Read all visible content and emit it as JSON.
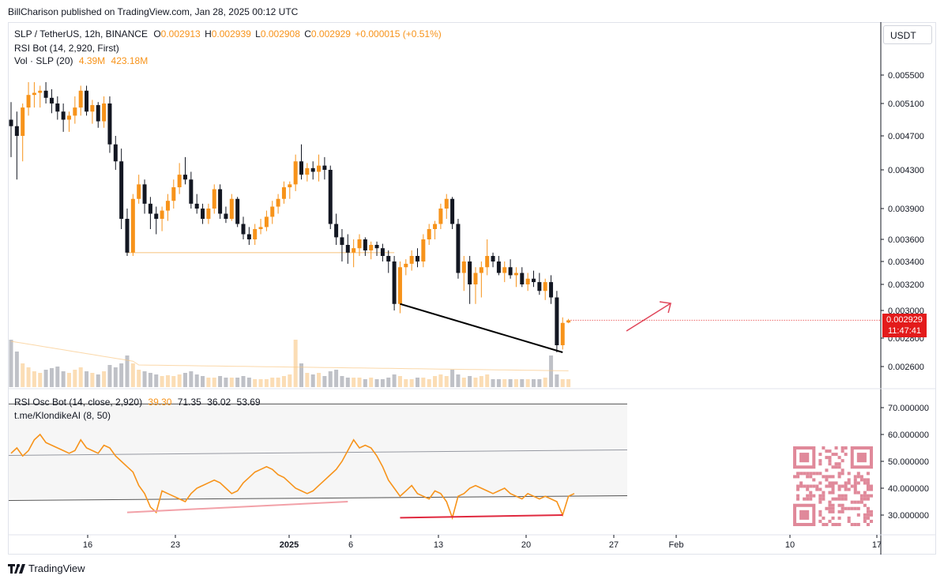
{
  "header": {
    "published_line": "BillCharison published on TradingView.com, Jan 28, 2025 00:12 UTC"
  },
  "legend": {
    "symbol": "SLP / TetherUS, 12h, BINANCE",
    "open_label": "O",
    "open": "0.002913",
    "high_label": "H",
    "high": "0.002939",
    "low_label": "L",
    "low": "0.002908",
    "close_label": "C",
    "close": "0.002929",
    "change": "+0.000015 (+0.51%)",
    "indicator1": "RSI Bot (14, 2,920, First)",
    "vol_label": "Vol · SLP (20)",
    "vol_value": "4.39M",
    "vol_ma": "423.18M",
    "rsi_label": "RSI Osc Bot (14, close, 2,920)",
    "rsi_values": [
      "39.30",
      "71.35",
      "36.02",
      "53.69"
    ],
    "klondike": "t.me/KlondikeAI (8, 50)"
  },
  "currency_button": "USDT",
  "price_tag": {
    "price": "0.002929",
    "countdown": "11:47:41"
  },
  "colors": {
    "up": "#f7931a",
    "down": "#131722",
    "rsi_line": "#f7931a",
    "divergence_faded": "#f2a1a8",
    "divergence_strong": "#e0293f",
    "arrow": "#e0465a",
    "price_tag_bg": "#e31b1b",
    "grid": "#e0e3eb"
  },
  "footer": {
    "brand": "TradingView"
  },
  "chart_data": [
    {
      "type": "candlestick",
      "title": "SLP / TetherUS, 12h, BINANCE",
      "y_axis_ticks": [
        "0.005500",
        "0.005100",
        "0.004700",
        "0.004300",
        "0.003900",
        "0.003600",
        "0.003400",
        "0.003200",
        "0.003000",
        "0.002800",
        "0.002600"
      ],
      "x_axis_ticks": [
        "16",
        "23",
        "2025",
        "6",
        "13",
        "20",
        "27",
        "Feb",
        "10",
        "17"
      ],
      "ohlc": [
        [
          0.0049,
          0.00512,
          0.00445,
          0.00482
        ],
        [
          0.00482,
          0.005,
          0.0042,
          0.0047
        ],
        [
          0.0047,
          0.0051,
          0.0044,
          0.00505
        ],
        [
          0.00505,
          0.0054,
          0.00495,
          0.00522
        ],
        [
          0.00522,
          0.0054,
          0.00505,
          0.00525
        ],
        [
          0.00525,
          0.00535,
          0.00505,
          0.00528
        ],
        [
          0.00528,
          0.0054,
          0.0051,
          0.00518
        ],
        [
          0.00518,
          0.0053,
          0.00498,
          0.0051
        ],
        [
          0.0051,
          0.0052,
          0.0049,
          0.005
        ],
        [
          0.005,
          0.0051,
          0.00475,
          0.0049
        ],
        [
          0.0049,
          0.005,
          0.00475,
          0.00495
        ],
        [
          0.00495,
          0.0052,
          0.00485,
          0.00505
        ],
        [
          0.00505,
          0.00535,
          0.00495,
          0.00528
        ],
        [
          0.00528,
          0.00535,
          0.00495,
          0.005
        ],
        [
          0.005,
          0.00515,
          0.00485,
          0.00508
        ],
        [
          0.00508,
          0.00512,
          0.0048,
          0.00488
        ],
        [
          0.00488,
          0.0052,
          0.0048,
          0.0051
        ],
        [
          0.0051,
          0.0052,
          0.0045,
          0.0046
        ],
        [
          0.0046,
          0.0047,
          0.0043,
          0.0044
        ],
        [
          0.0044,
          0.00455,
          0.0037,
          0.0038
        ],
        [
          0.0038,
          0.0039,
          0.00345,
          0.00348
        ],
        [
          0.00348,
          0.00405,
          0.00345,
          0.004
        ],
        [
          0.004,
          0.00425,
          0.00395,
          0.00415
        ],
        [
          0.00415,
          0.0042,
          0.00385,
          0.00395
        ],
        [
          0.00395,
          0.00402,
          0.0037,
          0.00385
        ],
        [
          0.00385,
          0.00392,
          0.00365,
          0.0038
        ],
        [
          0.0038,
          0.00392,
          0.00368,
          0.00388
        ],
        [
          0.00388,
          0.00405,
          0.00378,
          0.00398
        ],
        [
          0.00398,
          0.0042,
          0.0039,
          0.00412
        ],
        [
          0.00412,
          0.00438,
          0.00405,
          0.00425
        ],
        [
          0.00425,
          0.00445,
          0.00415,
          0.0042
        ],
        [
          0.0042,
          0.00428,
          0.0039,
          0.00395
        ],
        [
          0.00395,
          0.00405,
          0.00385,
          0.0039
        ],
        [
          0.0039,
          0.00395,
          0.00375,
          0.0038
        ],
        [
          0.0038,
          0.00395,
          0.00375,
          0.0039
        ],
        [
          0.0039,
          0.00415,
          0.00385,
          0.0041
        ],
        [
          0.0041,
          0.00415,
          0.0038,
          0.00385
        ],
        [
          0.00385,
          0.00392,
          0.00376,
          0.0038
        ],
        [
          0.0038,
          0.00405,
          0.00378,
          0.004
        ],
        [
          0.004,
          0.00402,
          0.00372,
          0.00375
        ],
        [
          0.00375,
          0.00382,
          0.0036,
          0.00365
        ],
        [
          0.00365,
          0.00372,
          0.00355,
          0.0036
        ],
        [
          0.0036,
          0.00375,
          0.00355,
          0.0037
        ],
        [
          0.0037,
          0.0038,
          0.00365,
          0.00372
        ],
        [
          0.00372,
          0.00388,
          0.00368,
          0.00382
        ],
        [
          0.00382,
          0.00398,
          0.00375,
          0.00392
        ],
        [
          0.00392,
          0.00405,
          0.00385,
          0.004
        ],
        [
          0.004,
          0.00418,
          0.00395,
          0.00412
        ],
        [
          0.00412,
          0.00418,
          0.004,
          0.00415
        ],
        [
          0.00415,
          0.00448,
          0.00408,
          0.0044
        ],
        [
          0.0044,
          0.0046,
          0.0042,
          0.00425
        ],
        [
          0.00425,
          0.00438,
          0.00418,
          0.00432
        ],
        [
          0.00432,
          0.0044,
          0.0042,
          0.00428
        ],
        [
          0.00428,
          0.00448,
          0.00418,
          0.00435
        ],
        [
          0.00435,
          0.00445,
          0.0042,
          0.0043
        ],
        [
          0.0043,
          0.00435,
          0.0037,
          0.00375
        ],
        [
          0.00375,
          0.00385,
          0.00355,
          0.00362
        ],
        [
          0.00362,
          0.0037,
          0.0034,
          0.00355
        ],
        [
          0.00355,
          0.00365,
          0.00338,
          0.00348
        ],
        [
          0.00348,
          0.0036,
          0.00335,
          0.00352
        ],
        [
          0.00352,
          0.00365,
          0.00345,
          0.0036
        ],
        [
          0.0036,
          0.00362,
          0.00345,
          0.0035
        ],
        [
          0.0035,
          0.00358,
          0.00342,
          0.00355
        ],
        [
          0.00355,
          0.00358,
          0.00345,
          0.00352
        ],
        [
          0.00352,
          0.00356,
          0.0034,
          0.00345
        ],
        [
          0.00345,
          0.0035,
          0.0033,
          0.0034
        ],
        [
          0.0034,
          0.00345,
          0.003,
          0.00305
        ],
        [
          0.00305,
          0.0034,
          0.00298,
          0.00335
        ],
        [
          0.00335,
          0.00342,
          0.00328,
          0.00338
        ],
        [
          0.00338,
          0.0035,
          0.00332,
          0.00345
        ],
        [
          0.00345,
          0.00352,
          0.00335,
          0.0034
        ],
        [
          0.0034,
          0.00365,
          0.00335,
          0.0036
        ],
        [
          0.0036,
          0.00375,
          0.00355,
          0.0037
        ],
        [
          0.0037,
          0.00378,
          0.0036,
          0.00375
        ],
        [
          0.00375,
          0.00395,
          0.0037,
          0.0039
        ],
        [
          0.0039,
          0.00405,
          0.0038,
          0.004
        ],
        [
          0.004,
          0.00402,
          0.0037,
          0.00375
        ],
        [
          0.00375,
          0.0038,
          0.00325,
          0.0033
        ],
        [
          0.0033,
          0.00345,
          0.00315,
          0.0034
        ],
        [
          0.0034,
          0.00345,
          0.00305,
          0.0032
        ],
        [
          0.0032,
          0.00335,
          0.00305,
          0.0033
        ],
        [
          0.0033,
          0.0034,
          0.0031,
          0.00335
        ],
        [
          0.00335,
          0.0036,
          0.00328,
          0.00345
        ],
        [
          0.00345,
          0.00348,
          0.00335,
          0.0034
        ],
        [
          0.0034,
          0.00345,
          0.00328,
          0.0033
        ],
        [
          0.0033,
          0.0034,
          0.00322,
          0.00335
        ],
        [
          0.00335,
          0.00342,
          0.00325,
          0.00328
        ],
        [
          0.00328,
          0.00335,
          0.00318,
          0.0033
        ],
        [
          0.0033,
          0.00335,
          0.00318,
          0.0032
        ],
        [
          0.0032,
          0.0033,
          0.00315,
          0.00325
        ],
        [
          0.00325,
          0.00332,
          0.00318,
          0.00322
        ],
        [
          0.00322,
          0.0033,
          0.00312,
          0.00315
        ],
        [
          0.00315,
          0.00325,
          0.00308,
          0.00322
        ],
        [
          0.00322,
          0.00328,
          0.00305,
          0.0031
        ],
        [
          0.0031,
          0.00315,
          0.0027,
          0.00275
        ],
        [
          0.00275,
          0.00295,
          0.00272,
          0.00291
        ],
        [
          0.002913,
          0.002939,
          0.002908,
          0.002929
        ]
      ],
      "volume_ma_label": "423.18M",
      "horizontal_level": 0.00348,
      "trendline": {
        "from": [
          67,
          0.00305
        ],
        "to": [
          95,
          0.0027
        ]
      },
      "current_price": 0.002929
    },
    {
      "type": "line",
      "title": "RSI Osc Bot (14, close, 2,920)",
      "y_axis_ticks": [
        "70.000000",
        "60.000000",
        "50.000000",
        "40.000000",
        "30.000000"
      ],
      "ylim": [
        25,
        75
      ],
      "band_upper": 71.35,
      "band_middle": 53.69,
      "band_lower": 36.02,
      "values": [
        53,
        55,
        52,
        54,
        58,
        60,
        57,
        56,
        55,
        54,
        53,
        54,
        58,
        55,
        54,
        53,
        56,
        55,
        52,
        50,
        48,
        46,
        41,
        38,
        33,
        31,
        39,
        38,
        37,
        36,
        35,
        38,
        40,
        41,
        42,
        43,
        42,
        40,
        38,
        39,
        42,
        44,
        46,
        47,
        48,
        47,
        45,
        44,
        42,
        40,
        39,
        38,
        39,
        41,
        43,
        45,
        47,
        50,
        54,
        58,
        55,
        56,
        55,
        52,
        48,
        43,
        40,
        37,
        39,
        41,
        38,
        37,
        36,
        39,
        38,
        35,
        29,
        37,
        38,
        40,
        41,
        40,
        39,
        38,
        39,
        40,
        38,
        37,
        36,
        38,
        37,
        36,
        37,
        36,
        35,
        30,
        37,
        38
      ],
      "divergences": [
        {
          "from": [
            20,
            31
          ],
          "to": [
            58,
            35
          ],
          "style": "faded"
        },
        {
          "from": [
            67,
            29
          ],
          "to": [
            95,
            30
          ],
          "style": "strong"
        }
      ]
    }
  ]
}
